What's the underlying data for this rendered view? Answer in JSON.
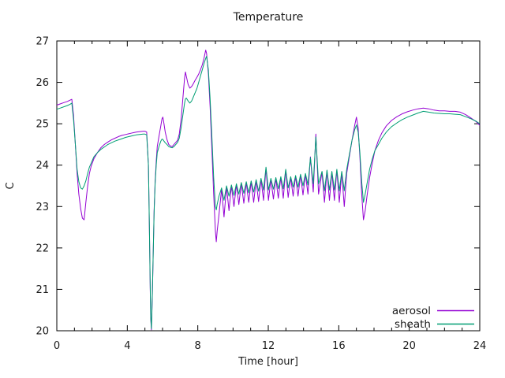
{
  "title": "Temperature",
  "axes": {
    "x": {
      "label": "Time [hour]",
      "min": 0,
      "max": 24,
      "major_tick_step": 4,
      "minor_tick_step": 1,
      "tick_labels": [
        "0",
        "4",
        "8",
        "12",
        "16",
        "20",
        "24"
      ]
    },
    "y": {
      "label": "C",
      "min": 20,
      "max": 27,
      "major_tick_step": 1,
      "tick_labels": [
        "20",
        "21",
        "22",
        "23",
        "24",
        "25",
        "26",
        "27"
      ]
    }
  },
  "legend": {
    "position": "bottom-right-inside",
    "entries": [
      {
        "label": "aerosol",
        "color": "#9400d3"
      },
      {
        "label": "sheath",
        "color": "#009e73"
      }
    ]
  },
  "colors": {
    "axis": "#000000",
    "text": "#1a1a1a",
    "background": "#ffffff",
    "aerosol_line": "#9400d3",
    "sheath_line": "#009e73"
  },
  "chart_data": {
    "type": "line",
    "title": "Temperature",
    "xlabel": "Time [hour]",
    "ylabel": "C",
    "xlim": [
      0,
      24
    ],
    "ylim": [
      20,
      27
    ],
    "grid": false,
    "legend_position": "bottom-right",
    "x": [
      0,
      0.2,
      0.4,
      0.6,
      0.75,
      0.85,
      0.95,
      1.05,
      1.15,
      1.25,
      1.35,
      1.45,
      1.55,
      1.65,
      1.75,
      1.85,
      1.95,
      2.1,
      2.3,
      2.5,
      2.7,
      2.9,
      3.1,
      3.3,
      3.5,
      3.7,
      3.9,
      4.1,
      4.3,
      4.5,
      4.7,
      4.9,
      5.0,
      5.1,
      5.2,
      5.25,
      5.3,
      5.33,
      5.37,
      5.42,
      5.47,
      5.52,
      5.58,
      5.64,
      5.7,
      5.8,
      5.9,
      5.97,
      6.02,
      6.08,
      6.15,
      6.25,
      6.35,
      6.45,
      6.55,
      6.65,
      6.75,
      6.85,
      6.95,
      7.05,
      7.15,
      7.25,
      7.3,
      7.35,
      7.45,
      7.55,
      7.65,
      7.75,
      7.85,
      7.95,
      8.05,
      8.15,
      8.25,
      8.35,
      8.45,
      8.5,
      8.6,
      8.7,
      8.8,
      8.9,
      9.0,
      9.05,
      9.1,
      9.2,
      9.35,
      9.49,
      9.63,
      9.77,
      9.91,
      10.05,
      10.19,
      10.33,
      10.47,
      10.61,
      10.75,
      10.89,
      11.03,
      11.17,
      11.31,
      11.45,
      11.59,
      11.73,
      11.87,
      12.01,
      12.15,
      12.29,
      12.43,
      12.57,
      12.71,
      12.85,
      12.99,
      13.13,
      13.27,
      13.41,
      13.55,
      13.69,
      13.83,
      13.97,
      14.11,
      14.25,
      14.39,
      14.55,
      14.7,
      14.85,
      15.05,
      15.19,
      15.33,
      15.47,
      15.61,
      15.75,
      15.89,
      16.03,
      16.17,
      16.31,
      16.45,
      16.6,
      16.75,
      16.9,
      17.0,
      17.1,
      17.2,
      17.3,
      17.4,
      17.5,
      17.6,
      17.75,
      17.9,
      18.05,
      18.25,
      18.45,
      18.7,
      19.0,
      19.3,
      19.6,
      19.9,
      20.2,
      20.5,
      20.8,
      21.1,
      21.4,
      21.7,
      22.0,
      22.3,
      22.6,
      22.9,
      23.2,
      23.5,
      23.8,
      24.0
    ],
    "series": [
      {
        "name": "aerosol",
        "color": "#9400d3",
        "values": [
          25.45,
          25.48,
          25.51,
          25.54,
          25.57,
          25.59,
          25.2,
          24.5,
          23.8,
          23.3,
          22.95,
          22.72,
          22.68,
          23.1,
          23.5,
          23.8,
          23.98,
          24.15,
          24.3,
          24.42,
          24.5,
          24.56,
          24.61,
          24.65,
          24.69,
          24.72,
          24.74,
          24.76,
          24.78,
          24.8,
          24.81,
          24.82,
          24.82,
          24.8,
          24.0,
          22.5,
          21.0,
          20.3,
          20.02,
          20.8,
          21.9,
          22.9,
          23.6,
          24.1,
          24.45,
          24.7,
          24.95,
          25.12,
          25.16,
          25.0,
          24.8,
          24.62,
          24.5,
          24.46,
          24.45,
          24.5,
          24.55,
          24.6,
          24.75,
          25.1,
          25.6,
          26.1,
          26.25,
          26.15,
          25.95,
          25.86,
          25.9,
          25.97,
          26.05,
          26.12,
          26.2,
          26.3,
          26.42,
          26.58,
          26.78,
          26.7,
          26.2,
          25.4,
          24.4,
          23.3,
          22.4,
          22.15,
          22.4,
          22.8,
          23.42,
          22.75,
          23.48,
          22.9,
          23.5,
          23.0,
          23.53,
          23.05,
          23.56,
          23.08,
          23.58,
          23.1,
          23.6,
          23.1,
          23.63,
          23.12,
          23.66,
          23.15,
          23.93,
          23.15,
          23.66,
          23.18,
          23.68,
          23.2,
          23.7,
          23.2,
          23.88,
          23.22,
          23.7,
          23.25,
          23.73,
          23.25,
          23.76,
          23.28,
          23.78,
          23.3,
          24.2,
          23.35,
          24.75,
          23.3,
          23.83,
          23.1,
          23.86,
          23.15,
          23.83,
          23.15,
          23.88,
          23.1,
          23.83,
          23.0,
          23.8,
          24.2,
          24.6,
          24.95,
          25.16,
          24.9,
          24.2,
          23.3,
          22.68,
          22.9,
          23.25,
          23.7,
          24.05,
          24.35,
          24.6,
          24.78,
          24.95,
          25.08,
          25.17,
          25.24,
          25.29,
          25.33,
          25.36,
          25.38,
          25.36,
          25.33,
          25.31,
          25.31,
          25.3,
          25.3,
          25.28,
          25.22,
          25.14,
          25.05,
          24.96
        ]
      },
      {
        "name": "sheath",
        "color": "#009e73",
        "values": [
          25.35,
          25.38,
          25.41,
          25.44,
          25.47,
          25.5,
          25.1,
          24.5,
          23.9,
          23.6,
          23.45,
          23.42,
          23.5,
          23.62,
          23.8,
          23.95,
          24.05,
          24.2,
          24.3,
          24.38,
          24.44,
          24.5,
          24.54,
          24.58,
          24.61,
          24.64,
          24.67,
          24.69,
          24.71,
          24.73,
          24.74,
          24.75,
          24.75,
          24.73,
          24.0,
          22.55,
          21.05,
          20.35,
          20.05,
          20.85,
          21.9,
          22.85,
          23.55,
          24.0,
          24.3,
          24.45,
          24.58,
          24.63,
          24.62,
          24.58,
          24.54,
          24.5,
          24.45,
          24.43,
          24.42,
          24.45,
          24.5,
          24.55,
          24.65,
          24.9,
          25.2,
          25.5,
          25.6,
          25.62,
          25.55,
          25.5,
          25.55,
          25.65,
          25.75,
          25.85,
          26.0,
          26.15,
          26.3,
          26.45,
          26.58,
          26.63,
          26.3,
          25.6,
          24.7,
          23.7,
          23.0,
          22.92,
          23.05,
          23.25,
          23.45,
          23.15,
          23.5,
          23.25,
          23.52,
          23.27,
          23.55,
          23.3,
          23.58,
          23.32,
          23.6,
          23.33,
          23.62,
          23.35,
          23.65,
          23.37,
          23.68,
          23.4,
          23.95,
          23.4,
          23.68,
          23.42,
          23.7,
          23.43,
          23.72,
          23.43,
          23.9,
          23.45,
          23.72,
          23.47,
          23.75,
          23.47,
          23.78,
          23.5,
          23.8,
          23.52,
          24.18,
          23.55,
          24.68,
          23.55,
          23.85,
          23.38,
          23.88,
          23.4,
          23.85,
          23.4,
          23.9,
          23.38,
          23.85,
          23.38,
          23.9,
          24.25,
          24.6,
          24.85,
          24.97,
          24.8,
          24.3,
          23.6,
          23.1,
          23.3,
          23.55,
          23.9,
          24.15,
          24.35,
          24.5,
          24.65,
          24.8,
          24.93,
          25.02,
          25.1,
          25.16,
          25.21,
          25.26,
          25.3,
          25.28,
          25.26,
          25.25,
          25.24,
          25.24,
          25.23,
          25.22,
          25.17,
          25.12,
          25.06,
          25.0
        ]
      }
    ]
  }
}
